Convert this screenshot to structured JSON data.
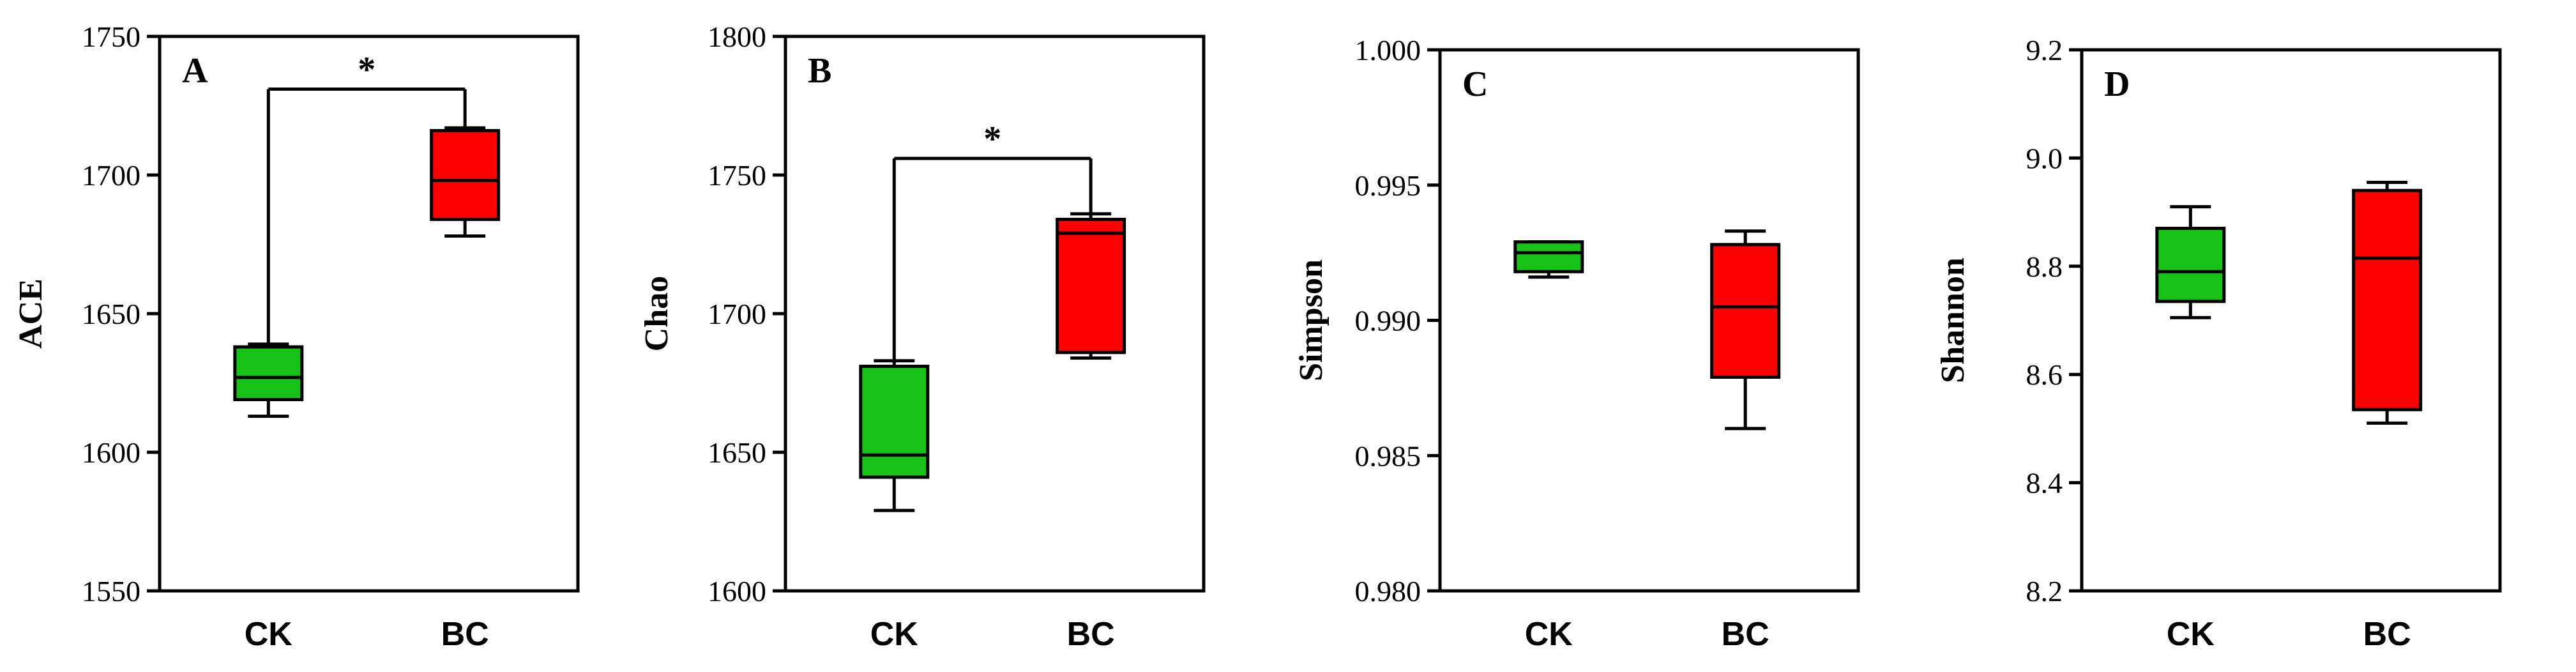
{
  "colors": {
    "CK": "#17c217",
    "BC": "#ff0000",
    "line": "#000000"
  },
  "chart_data": [
    {
      "type": "box",
      "panel": "A",
      "ylabel": "ACE",
      "ylim": [
        1550,
        1750
      ],
      "yticks": [
        "1550",
        "1600",
        "1650",
        "1700",
        "1750"
      ],
      "categories": [
        "CK",
        "BC"
      ],
      "boxes": [
        {
          "name": "CK",
          "min": 1613,
          "q1": 1619,
          "median": 1627,
          "q3": 1638,
          "max": 1639
        },
        {
          "name": "BC",
          "min": 1678,
          "q1": 1684,
          "median": 1698,
          "q3": 1716,
          "max": 1717
        }
      ],
      "significance": {
        "label": "*",
        "y": 1731
      }
    },
    {
      "type": "box",
      "panel": "B",
      "ylabel": "Chao",
      "ylim": [
        1600,
        1800
      ],
      "yticks": [
        "1600",
        "1650",
        "1700",
        "1750",
        "1800"
      ],
      "categories": [
        "CK",
        "BC"
      ],
      "boxes": [
        {
          "name": "CK",
          "min": 1629,
          "q1": 1641,
          "median": 1649,
          "q3": 1681,
          "max": 1683
        },
        {
          "name": "BC",
          "min": 1684,
          "q1": 1686,
          "median": 1729,
          "q3": 1734,
          "max": 1736
        }
      ],
      "significance": {
        "label": "*",
        "y": 1756
      }
    },
    {
      "type": "box",
      "panel": "C",
      "ylabel": "Simpson",
      "ylim": [
        0.98,
        1.0
      ],
      "yticks": [
        "0.980",
        "0.985",
        "0.990",
        "0.995",
        "1.000"
      ],
      "categories": [
        "CK",
        "BC"
      ],
      "boxes": [
        {
          "name": "CK",
          "min": 0.9916,
          "q1": 0.9918,
          "median": 0.9925,
          "q3": 0.9929,
          "max": 0.9929
        },
        {
          "name": "BC",
          "min": 0.986,
          "q1": 0.9879,
          "median": 0.9905,
          "q3": 0.9928,
          "max": 0.9933
        }
      ]
    },
    {
      "type": "box",
      "panel": "D",
      "ylabel": "Shannon",
      "ylim": [
        8.2,
        9.2
      ],
      "yticks": [
        "8.2",
        "8.4",
        "8.6",
        "8.8",
        "9.0",
        "9.2"
      ],
      "categories": [
        "CK",
        "BC"
      ],
      "boxes": [
        {
          "name": "CK",
          "min": 8.705,
          "q1": 8.735,
          "median": 8.79,
          "q3": 8.87,
          "max": 8.91
        },
        {
          "name": "BC",
          "min": 8.51,
          "q1": 8.535,
          "median": 8.815,
          "q3": 8.94,
          "max": 8.955
        }
      ]
    }
  ]
}
